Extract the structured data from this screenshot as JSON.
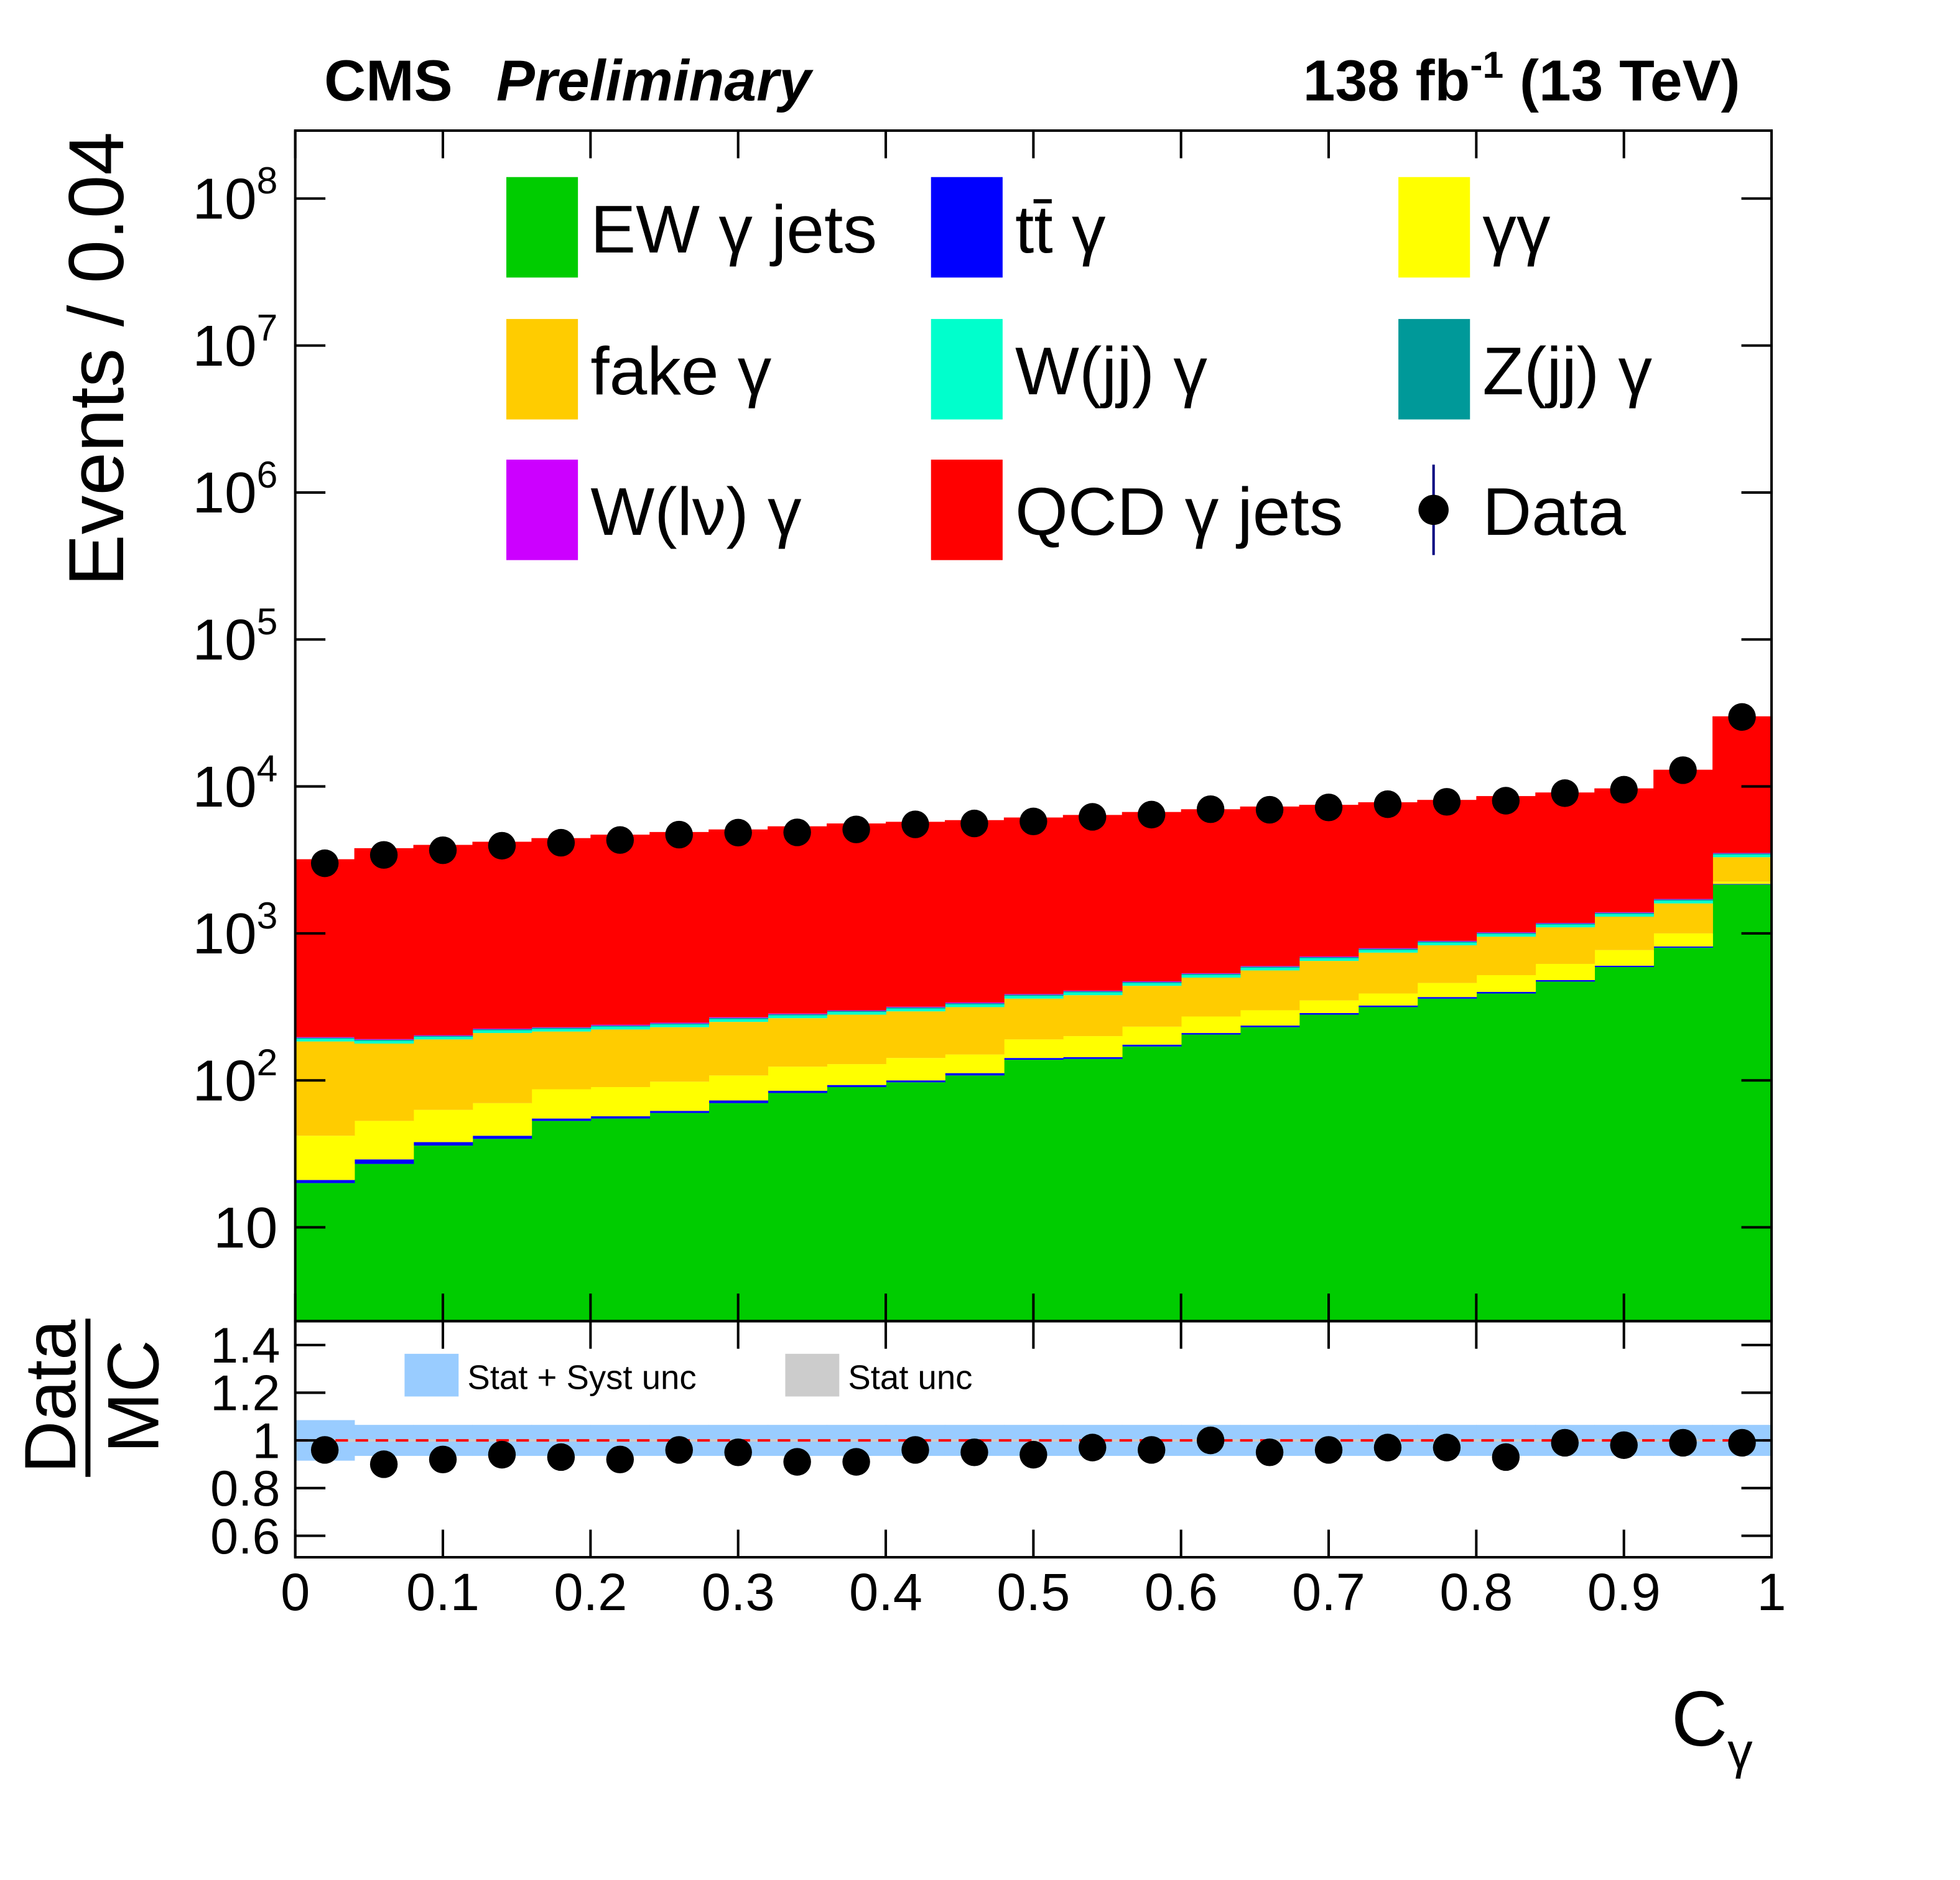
{
  "chart_data": {
    "type": "histogram",
    "title": {
      "experiment": "CMS",
      "status": "Preliminary"
    },
    "lumi": {
      "text": "138 fb",
      "sup": "-1",
      "tail": " (13 TeV)"
    },
    "ylabel": "Events / 0.04",
    "xlabel": {
      "text": "C",
      "sub": "γ"
    },
    "bins": [
      0,
      0.04,
      0.08,
      0.12,
      0.16,
      0.2,
      0.24,
      0.28,
      0.32,
      0.36,
      0.4,
      0.44,
      0.48,
      0.52,
      0.56,
      0.6,
      0.64,
      0.68,
      0.72,
      0.76,
      0.8,
      0.84,
      0.88,
      0.92,
      0.96,
      1
    ],
    "xlim": [
      0,
      1
    ],
    "xticks": [
      0,
      0.1,
      0.2,
      0.3,
      0.4,
      0.5,
      0.6,
      0.7,
      0.8,
      0.9,
      1
    ],
    "yscale": "log",
    "ylim": [
      2.3,
      290000000
    ],
    "yticks": [
      10,
      {
        "value": 100,
        "label": "10",
        "sup": "2"
      },
      {
        "value": 1000,
        "label": "10",
        "sup": "3"
      },
      {
        "value": 10000,
        "label": "10",
        "sup": "4"
      },
      {
        "value": 100000,
        "label": "10",
        "sup": "5"
      },
      {
        "value": 1000000,
        "label": "10",
        "sup": "6"
      },
      {
        "value": 10000000,
        "label": "10",
        "sup": "7"
      },
      {
        "value": 100000000,
        "label": "10",
        "sup": "8"
      }
    ],
    "legend": "top",
    "series": [
      {
        "name": "EW γ jets",
        "color": "#00cc00",
        "values": [
          20,
          27,
          36,
          40,
          53,
          55,
          60,
          70,
          82,
          90,
          97,
          108,
          138,
          140,
          170,
          205,
          230,
          280,
          315,
          360,
          390,
          470,
          590,
          800,
          2150
        ]
      },
      {
        "name": "tt̄ γ",
        "color": "#0000ff",
        "values": [
          1,
          2,
          2,
          2,
          2,
          2,
          2,
          3,
          3,
          3,
          3,
          4,
          4,
          4,
          5,
          5,
          6,
          7,
          8,
          9,
          10,
          11,
          13,
          15,
          20
        ]
      },
      {
        "name": "γγ",
        "color": "#ffff00",
        "values": [
          21,
          24,
          25,
          28,
          32,
          33,
          36,
          35,
          39,
          36,
          42,
          38,
          48,
          56,
          57,
          62,
          64,
          63,
          67,
          91,
          120,
          139,
          167,
          185,
          80
        ]
      },
      {
        "name": "fake γ",
        "color": "#ffcc00",
        "values": [
          142,
          125,
          127,
          140,
          128,
          132,
          132,
          142,
          141,
          151,
          153,
          165,
          170,
          180,
          208,
          228,
          260,
          300,
          350,
          370,
          430,
          480,
          530,
          600,
          1050
        ]
      },
      {
        "name": "W(jj) γ",
        "color": "#00ffcc",
        "values": [
          8,
          8,
          8,
          9,
          9,
          10,
          10,
          11,
          12,
          12,
          13,
          14,
          16,
          17,
          19,
          22,
          24,
          28,
          32,
          36,
          41,
          48,
          56,
          70,
          140
        ]
      },
      {
        "name": "Z(jj) γ",
        "color": "#009999",
        "values": [
          3,
          3,
          3,
          4,
          4,
          4,
          4,
          5,
          5,
          5,
          6,
          6,
          7,
          7,
          8,
          9,
          10,
          12,
          14,
          15,
          17,
          20,
          24,
          30,
          60
        ]
      },
      {
        "name": "W(lν) γ",
        "color": "#cc00ff",
        "values": [
          2,
          2,
          2,
          2,
          2,
          3,
          3,
          3,
          3,
          3,
          3,
          4,
          4,
          4,
          5,
          5,
          6,
          7,
          8,
          9,
          10,
          11,
          13,
          16,
          30
        ]
      },
      {
        "name": "QCD γ jets",
        "color": "#ff0000",
        "values": [
          3000,
          3610,
          3800,
          3980,
          4220,
          4460,
          4650,
          4830,
          5070,
          5300,
          5430,
          5560,
          5760,
          5990,
          6230,
          6460,
          6700,
          6800,
          7010,
          7210,
          7580,
          7920,
          8310,
          11280,
          26470
        ]
      }
    ],
    "data": {
      "name": "Data",
      "color": "#000000",
      "values": [
        3000,
        3420,
        3680,
        3950,
        4140,
        4320,
        4700,
        4850,
        4870,
        5100,
        5520,
        5600,
        5780,
        6210,
        6430,
        7000,
        6940,
        7200,
        7570,
        7860,
        8000,
        9000,
        9500,
        12900,
        29700
      ]
    },
    "ratio": {
      "ylabel": {
        "numerator": "Data",
        "denominator": "MC"
      },
      "ylim": [
        0.51,
        1.5
      ],
      "yticks": [
        0.6,
        0.8,
        1,
        1.2,
        1.4
      ],
      "reference_line": 1,
      "values": [
        0.96,
        0.9,
        0.92,
        0.94,
        0.93,
        0.92,
        0.96,
        0.95,
        0.91,
        0.91,
        0.96,
        0.95,
        0.94,
        0.97,
        0.96,
        1.0,
        0.95,
        0.96,
        0.97,
        0.97,
        0.93,
        0.99,
        0.98,
        0.99,
        0.99
      ],
      "bands": [
        {
          "name": "Stat + Syst unc",
          "color": "#99ccff",
          "values": [
            0.085,
            0.065,
            0.065,
            0.065,
            0.065,
            0.065,
            0.065,
            0.065,
            0.065,
            0.065,
            0.065,
            0.065,
            0.065,
            0.065,
            0.065,
            0.065,
            0.065,
            0.065,
            0.065,
            0.065,
            0.065,
            0.065,
            0.065,
            0.065,
            0.065
          ]
        },
        {
          "name": "Stat unc",
          "color": "#cccccc",
          "values": [
            0.006,
            0.005,
            0.005,
            0.005,
            0.005,
            0.005,
            0.005,
            0.005,
            0.005,
            0.005,
            0.005,
            0.005,
            0.005,
            0.005,
            0.005,
            0.005,
            0.005,
            0.005,
            0.005,
            0.005,
            0.005,
            0.005,
            0.005,
            0.004,
            0.003
          ]
        }
      ]
    }
  }
}
